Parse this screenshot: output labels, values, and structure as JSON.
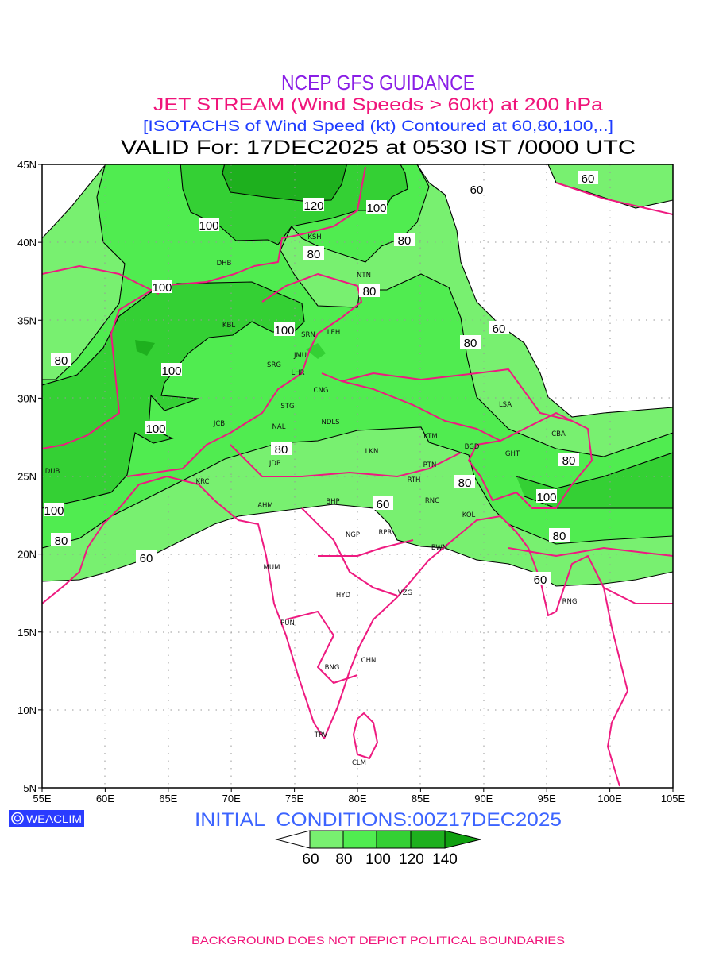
{
  "header": {
    "title": "NCEP GFS GUIDANCE",
    "subtitle": "JET STREAM (Wind Speeds > 60kt) at 200 hPa",
    "description": "[ISOTACHS of Wind Speed (kt) Contoured at 60,80,100,..]",
    "valid": "VALID For: 17DEC2025 at 0530 IST /0000 UTC"
  },
  "colors": {
    "title": "#8a1ee6",
    "subtitle": "#f0147a",
    "description": "#1e3cff",
    "band_60_80": "#78f070",
    "band_80_100": "#50ec50",
    "band_100_120": "#34d034",
    "band_120_140": "#1eb01e",
    "band_140_plus": "#10a010",
    "borders": "#ee1a80"
  },
  "map": {
    "lon_ticks": [
      "55E",
      "60E",
      "65E",
      "70E",
      "75E",
      "80E",
      "85E",
      "90E",
      "95E",
      "100E",
      "105E"
    ],
    "lat_ticks": [
      "45N",
      "40N",
      "35N",
      "30N",
      "25N",
      "20N",
      "15N",
      "10N",
      "5N"
    ],
    "cities": [
      "DHB",
      "KSH",
      "NTN",
      "KBL",
      "SRN",
      "LEH",
      "JMU",
      "SRG",
      "LHR",
      "CNG",
      "STG",
      "NDLS",
      "JCB",
      "NAL",
      "JDP",
      "LKN",
      "KTM",
      "BGD",
      "GHT",
      "CBA",
      "LSA",
      "PTN",
      "RTH",
      "RNC",
      "KOL",
      "DUB",
      "KRC",
      "AHM",
      "BHP",
      "NGP",
      "RPR",
      "BWN",
      "MUM",
      "HYD",
      "VZG",
      "PUN",
      "RNG",
      "CHN",
      "BNG",
      "TRV",
      "CLM"
    ],
    "contour_labels": [
      "60",
      "60",
      "120",
      "100",
      "100",
      "80",
      "80",
      "80",
      "100",
      "60",
      "100",
      "80",
      "80",
      "100",
      "100",
      "80",
      "80",
      "80",
      "100",
      "60",
      "100",
      "80",
      "80",
      "60",
      "60"
    ]
  },
  "footer": {
    "logo": "WEACLIM",
    "initial_conditions": "INITIAL  CONDITIONS:00Z17DEC2025",
    "legend_labels": [
      "60",
      "80",
      "100",
      "120",
      "140"
    ],
    "disclaimer": "BACKGROUND DOES NOT DEPICT POLITICAL BOUNDARIES"
  }
}
